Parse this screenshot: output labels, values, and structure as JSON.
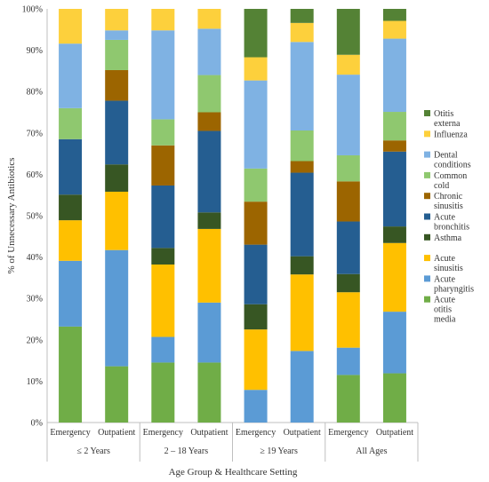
{
  "chart_data": {
    "type": "bar",
    "stacked": true,
    "ylabel": "% of Unnecessary Antibiotics",
    "xlabel": "Age Group & Healthcare Setting",
    "ylim": [
      0,
      100
    ],
    "y_ticks": [
      "0%",
      "10%",
      "20%",
      "30%",
      "40%",
      "50%",
      "60%",
      "70%",
      "80%",
      "90%",
      "100%"
    ],
    "grid": false,
    "legend_position": "right",
    "categories": [
      "Emergency",
      "Outpatient",
      "Emergency",
      "Outpatient",
      "Emergency",
      "Outpatient",
      "Emergency",
      "Outpatient"
    ],
    "groups": [
      {
        "label": "≤ 2 Years",
        "span": [
          0,
          1
        ]
      },
      {
        "label": "2 – 18 Years",
        "span": [
          2,
          3
        ]
      },
      {
        "label": "≥ 19 Years",
        "span": [
          4,
          5
        ]
      },
      {
        "label": "All Ages",
        "span": [
          6,
          7
        ]
      }
    ],
    "series": [
      {
        "name": "Acute otitis media",
        "color": "#70ad47",
        "values": [
          23.2,
          13.6,
          14.5,
          14.5,
          0,
          0,
          11.5,
          11.9
        ]
      },
      {
        "name": "Acute pharyngitis",
        "color": "#5b9bd5",
        "values": [
          15.9,
          28.1,
          6.2,
          14.5,
          7.9,
          17.3,
          6.6,
          14.9
        ]
      },
      {
        "name": "Acute sinusitis",
        "color": "#ffc000",
        "values": [
          9.8,
          14.1,
          17.5,
          17.8,
          14.6,
          18.5,
          13.4,
          16.6
        ]
      },
      {
        "name": "Asthma",
        "color": "#375623",
        "values": [
          6.2,
          6.6,
          4.0,
          4.0,
          6.1,
          4.4,
          4.4,
          4.0
        ]
      },
      {
        "name": "Acute bronchitis",
        "color": "#255e91",
        "values": [
          13.4,
          15.4,
          15.1,
          19.7,
          14.4,
          20.2,
          12.7,
          18.1
        ]
      },
      {
        "name": "Chronic sinusitis",
        "color": "#9c6500",
        "values": [
          0,
          7.4,
          9.7,
          4.5,
          10.4,
          2.8,
          9.7,
          2.7
        ]
      },
      {
        "name": "Common cold",
        "color": "#8fc86f",
        "values": [
          7.5,
          7.3,
          6.3,
          9.0,
          8.0,
          7.4,
          6.3,
          6.9
        ]
      },
      {
        "name": "Dental conditions",
        "color": "#7fb2e3",
        "values": [
          15.6,
          2.3,
          21.5,
          11.2,
          21.3,
          21.4,
          19.5,
          17.7
        ]
      },
      {
        "name": "Influenza",
        "color": "#fdd03c",
        "values": [
          8.4,
          5.2,
          5.2,
          4.8,
          5.6,
          4.6,
          4.8,
          4.3
        ]
      },
      {
        "name": "Otitis externa",
        "color": "#548235",
        "values": [
          0,
          0,
          0,
          0,
          11.7,
          3.4,
          11.1,
          2.9
        ]
      }
    ]
  }
}
